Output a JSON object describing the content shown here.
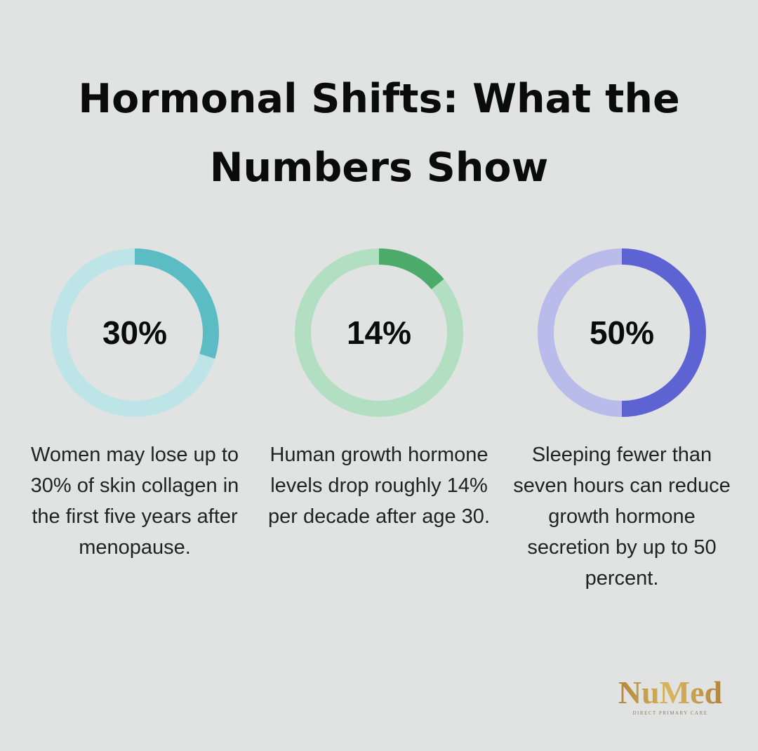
{
  "title": "Hormonal Shifts: What the Numbers Show",
  "chart_data": [
    {
      "type": "donut",
      "values": [
        30
      ],
      "value_labels": [
        "30%"
      ],
      "color": "#5bbcc4",
      "track_color": "#bde4e7",
      "caption": "Women may lose up to 30% of skin collagen in the first five years after menopause."
    },
    {
      "type": "donut",
      "values": [
        14
      ],
      "value_labels": [
        "14%"
      ],
      "color": "#4caa6a",
      "track_color": "#b2dfc2",
      "caption": "Human growth hormone levels drop roughly 14% per decade after age 30."
    },
    {
      "type": "donut",
      "values": [
        50
      ],
      "value_labels": [
        "50%"
      ],
      "color": "#5e63d4",
      "track_color": "#b9bbeb",
      "caption": "Sleeping fewer than seven hours can reduce growth hormone secretion by up to 50 percent."
    }
  ],
  "logo": {
    "name": "NuMed",
    "tagline": "DIRECT PRIMARY CARE"
  }
}
